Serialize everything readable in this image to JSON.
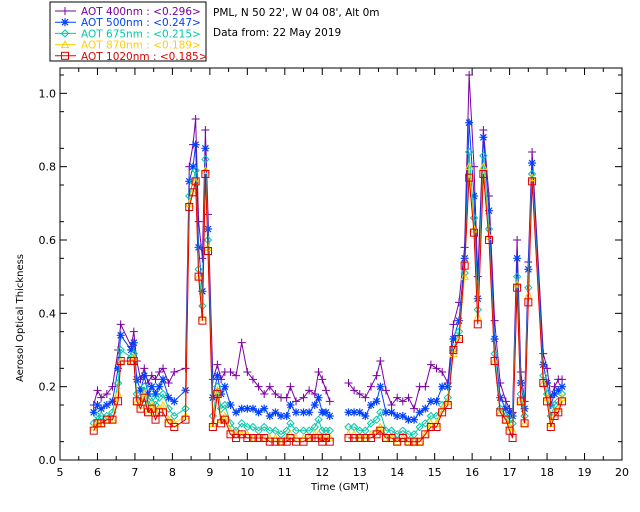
{
  "chart_data": {
    "type": "line",
    "xlabel": "Time (GMT)",
    "ylabel": "Aerosol Optical Thickness",
    "xlim": [
      5,
      20
    ],
    "ylim": [
      0,
      1.05
    ],
    "xticks": [
      "5",
      "6",
      "7",
      "8",
      "9",
      "10",
      "11",
      "12",
      "13",
      "14",
      "15",
      "16",
      "17",
      "18",
      "19",
      "20"
    ],
    "yticks": [
      "0.0",
      "0.2",
      "0.4",
      "0.6",
      "0.8",
      "1.0"
    ],
    "grid": false,
    "legend_position": "top-left",
    "info": {
      "station": "PML, N 50 22', W 04 08', Alt 0m",
      "date": "Data from: 22 May 2019"
    },
    "x": [
      5.9,
      6.0,
      6.1,
      6.25,
      6.4,
      6.55,
      6.62,
      6.9,
      6.97,
      7.05,
      7.15,
      7.25,
      7.35,
      7.45,
      7.55,
      7.65,
      7.75,
      7.9,
      8.05,
      8.35,
      8.45,
      8.55,
      8.62,
      8.7,
      8.8,
      8.88,
      8.95,
      9.08,
      9.2,
      9.3,
      9.4,
      9.55,
      9.7,
      9.85,
      10.0,
      10.15,
      10.3,
      10.45,
      10.6,
      10.75,
      10.9,
      11.05,
      11.15,
      11.3,
      11.5,
      11.65,
      11.8,
      11.9,
      12.0,
      12.1,
      12.2,
      12.7,
      12.85,
      13.0,
      13.15,
      13.3,
      13.45,
      13.55,
      13.7,
      13.85,
      14.0,
      14.15,
      14.3,
      14.45,
      14.6,
      14.75,
      14.9,
      15.05,
      15.2,
      15.35,
      15.5,
      15.65,
      15.8,
      15.92,
      16.05,
      16.15,
      16.3,
      16.45,
      16.6,
      16.75,
      16.9,
      17.0,
      17.08,
      17.2,
      17.3,
      17.4,
      17.5,
      17.6,
      17.9,
      18.0,
      18.1,
      18.2,
      18.3,
      18.4
    ],
    "series": [
      {
        "name": "AOT  400nm",
        "legend": "AOT  400nm : <0.296>",
        "color": "#7a00a0",
        "marker": "plus",
        "values": [
          0.15,
          0.19,
          0.17,
          0.18,
          0.2,
          0.3,
          0.37,
          0.31,
          0.35,
          0.27,
          0.22,
          0.25,
          0.21,
          0.23,
          0.22,
          0.24,
          0.25,
          0.21,
          0.24,
          0.25,
          0.8,
          0.86,
          0.93,
          0.65,
          0.55,
          0.9,
          0.67,
          0.22,
          0.26,
          0.22,
          0.24,
          0.24,
          0.23,
          0.32,
          0.24,
          0.22,
          0.2,
          0.18,
          0.2,
          0.18,
          0.17,
          0.17,
          0.2,
          0.16,
          0.17,
          0.19,
          0.18,
          0.24,
          0.22,
          0.19,
          0.16,
          0.21,
          0.19,
          0.18,
          0.17,
          0.2,
          0.23,
          0.27,
          0.19,
          0.15,
          0.17,
          0.16,
          0.17,
          0.14,
          0.2,
          0.2,
          0.26,
          0.25,
          0.24,
          0.21,
          0.37,
          0.43,
          0.58,
          1.05,
          0.8,
          0.5,
          0.9,
          0.72,
          0.38,
          0.21,
          0.16,
          0.14,
          0.13,
          0.6,
          0.24,
          0.16,
          0.54,
          0.84,
          0.29,
          0.25,
          0.17,
          0.2,
          0.22,
          0.22
        ]
      },
      {
        "name": "AOT  500nm",
        "legend": "AOT  500nm : <0.247>",
        "color": "#0040ff",
        "marker": "asterisk",
        "values": [
          0.13,
          0.15,
          0.14,
          0.15,
          0.16,
          0.25,
          0.34,
          0.3,
          0.32,
          0.22,
          0.19,
          0.23,
          0.18,
          0.2,
          0.18,
          0.2,
          0.22,
          0.17,
          0.16,
          0.19,
          0.76,
          0.8,
          0.86,
          0.58,
          0.46,
          0.85,
          0.63,
          0.17,
          0.23,
          0.18,
          0.2,
          0.15,
          0.13,
          0.14,
          0.14,
          0.14,
          0.13,
          0.14,
          0.12,
          0.13,
          0.12,
          0.12,
          0.15,
          0.13,
          0.13,
          0.13,
          0.15,
          0.17,
          0.13,
          0.13,
          0.12,
          0.13,
          0.13,
          0.13,
          0.12,
          0.15,
          0.16,
          0.2,
          0.13,
          0.13,
          0.12,
          0.12,
          0.11,
          0.11,
          0.13,
          0.14,
          0.16,
          0.16,
          0.2,
          0.2,
          0.33,
          0.38,
          0.55,
          0.92,
          0.72,
          0.44,
          0.88,
          0.68,
          0.33,
          0.17,
          0.14,
          0.13,
          0.12,
          0.55,
          0.21,
          0.14,
          0.52,
          0.81,
          0.26,
          0.21,
          0.15,
          0.18,
          0.19,
          0.2
        ]
      },
      {
        "name": "AOT  675nm",
        "legend": "AOT  675nm : <0.215>",
        "color": "#00c8a8",
        "marker": "diamond",
        "values": [
          0.1,
          0.12,
          0.12,
          0.12,
          0.13,
          0.21,
          0.3,
          0.28,
          0.29,
          0.18,
          0.16,
          0.2,
          0.15,
          0.17,
          0.15,
          0.17,
          0.18,
          0.14,
          0.12,
          0.14,
          0.72,
          0.76,
          0.79,
          0.52,
          0.42,
          0.82,
          0.6,
          0.12,
          0.2,
          0.14,
          0.15,
          0.1,
          0.08,
          0.1,
          0.09,
          0.09,
          0.08,
          0.09,
          0.08,
          0.08,
          0.07,
          0.08,
          0.1,
          0.08,
          0.08,
          0.08,
          0.09,
          0.11,
          0.08,
          0.08,
          0.08,
          0.09,
          0.09,
          0.08,
          0.08,
          0.1,
          0.11,
          0.13,
          0.08,
          0.08,
          0.07,
          0.08,
          0.07,
          0.07,
          0.09,
          0.1,
          0.12,
          0.12,
          0.15,
          0.17,
          0.3,
          0.35,
          0.51,
          0.84,
          0.66,
          0.41,
          0.83,
          0.63,
          0.29,
          0.14,
          0.12,
          0.11,
          0.1,
          0.5,
          0.18,
          0.12,
          0.47,
          0.78,
          0.23,
          0.18,
          0.12,
          0.15,
          0.16,
          0.18
        ]
      },
      {
        "name": "AOT  870nm",
        "legend": "AOT  870nm : <0.189>",
        "color": "#ffd000",
        "marker": "triangle",
        "values": [
          0.09,
          0.1,
          0.1,
          0.11,
          0.11,
          0.18,
          0.27,
          0.27,
          0.28,
          0.16,
          0.15,
          0.18,
          0.13,
          0.15,
          0.13,
          0.14,
          0.15,
          0.11,
          0.1,
          0.12,
          0.7,
          0.73,
          0.76,
          0.5,
          0.39,
          0.79,
          0.58,
          0.1,
          0.19,
          0.11,
          0.12,
          0.08,
          0.07,
          0.07,
          0.07,
          0.06,
          0.06,
          0.06,
          0.06,
          0.06,
          0.05,
          0.06,
          0.07,
          0.06,
          0.06,
          0.06,
          0.07,
          0.07,
          0.06,
          0.06,
          0.06,
          0.07,
          0.07,
          0.06,
          0.06,
          0.07,
          0.08,
          0.09,
          0.06,
          0.06,
          0.05,
          0.06,
          0.05,
          0.05,
          0.05,
          0.07,
          0.1,
          0.1,
          0.14,
          0.16,
          0.29,
          0.33,
          0.5,
          0.8,
          0.63,
          0.39,
          0.8,
          0.61,
          0.27,
          0.13,
          0.11,
          0.09,
          0.08,
          0.48,
          0.16,
          0.1,
          0.45,
          0.77,
          0.21,
          0.17,
          0.1,
          0.13,
          0.14,
          0.17
        ]
      },
      {
        "name": "AOT 1020nm",
        "legend": "AOT 1020nm : <0.185>",
        "color": "#e00000",
        "marker": "square",
        "values": [
          0.08,
          0.1,
          0.1,
          0.11,
          0.11,
          0.16,
          0.27,
          0.27,
          0.27,
          0.16,
          0.14,
          0.17,
          0.13,
          0.14,
          0.11,
          0.13,
          0.13,
          0.1,
          0.09,
          0.11,
          0.69,
          0.73,
          0.76,
          0.5,
          0.38,
          0.78,
          0.57,
          0.09,
          0.18,
          0.1,
          0.11,
          0.07,
          0.06,
          0.07,
          0.06,
          0.06,
          0.06,
          0.06,
          0.05,
          0.05,
          0.05,
          0.05,
          0.06,
          0.05,
          0.05,
          0.06,
          0.06,
          0.06,
          0.05,
          0.06,
          0.05,
          0.06,
          0.06,
          0.06,
          0.06,
          0.06,
          0.07,
          0.08,
          0.06,
          0.06,
          0.05,
          0.06,
          0.05,
          0.05,
          0.05,
          0.07,
          0.09,
          0.09,
          0.13,
          0.15,
          0.3,
          0.33,
          0.53,
          0.77,
          0.62,
          0.37,
          0.78,
          0.6,
          0.27,
          0.13,
          0.11,
          0.08,
          0.06,
          0.47,
          0.16,
          0.1,
          0.43,
          0.76,
          0.21,
          0.16,
          0.09,
          0.12,
          0.13,
          0.16
        ]
      }
    ]
  }
}
